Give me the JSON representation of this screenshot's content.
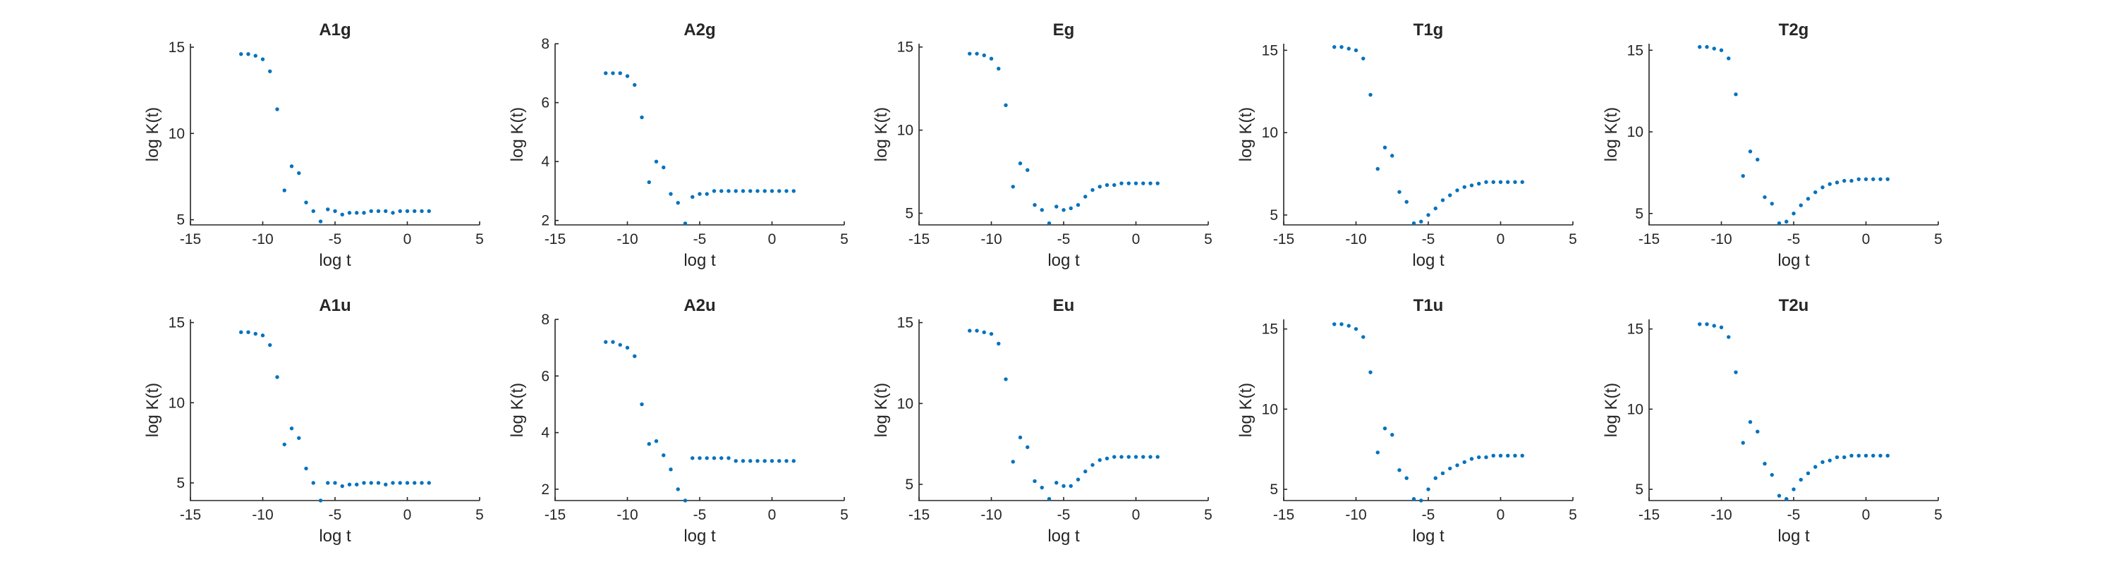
{
  "figure": {
    "background": "#ffffff",
    "marker_color": "#0072BD",
    "axis_color": "#262626"
  },
  "chart_data": [
    {
      "type": "scatter",
      "title": "A1g",
      "xlabel": "log t",
      "ylabel": "log K(t)",
      "xlim": [
        -15,
        5
      ],
      "ylim": [
        4.7,
        15.2
      ],
      "xticks": [
        -15,
        -10,
        -5,
        0,
        5
      ],
      "yticks": [
        5,
        10,
        15
      ],
      "grid": false,
      "x": [
        -11.5,
        -11.0,
        -10.5,
        -10.0,
        -9.5,
        -9.0,
        -8.5,
        -8.0,
        -7.5,
        -7.0,
        -6.5,
        -6.0,
        -5.5,
        -5.0,
        -4.5,
        -4.0,
        -3.5,
        -3.0,
        -2.5,
        -2.0,
        -1.5,
        -1.0,
        -0.5,
        0.0,
        0.5,
        1.0,
        1.5
      ],
      "y": [
        14.6,
        14.6,
        14.5,
        14.3,
        13.6,
        11.4,
        6.7,
        8.1,
        7.7,
        6.0,
        5.5,
        4.9,
        5.6,
        5.5,
        5.3,
        5.4,
        5.4,
        5.4,
        5.5,
        5.5,
        5.5,
        5.4,
        5.5,
        5.5,
        5.5,
        5.5,
        5.5
      ]
    },
    {
      "type": "scatter",
      "title": "A2g",
      "xlabel": "log t",
      "ylabel": "log K(t)",
      "xlim": [
        -15,
        5
      ],
      "ylim": [
        1.85,
        8.0
      ],
      "xticks": [
        -15,
        -10,
        -5,
        0,
        5
      ],
      "yticks": [
        2,
        4,
        6,
        8
      ],
      "grid": false,
      "x": [
        -11.5,
        -11.0,
        -10.5,
        -10.0,
        -9.5,
        -9.0,
        -8.5,
        -8.0,
        -7.5,
        -7.0,
        -6.5,
        -6.0,
        -5.5,
        -5.0,
        -4.5,
        -4.0,
        -3.5,
        -3.0,
        -2.5,
        -2.0,
        -1.5,
        -1.0,
        -0.5,
        0.0,
        0.5,
        1.0,
        1.5
      ],
      "y": [
        7.0,
        7.0,
        7.0,
        6.9,
        6.6,
        5.5,
        3.3,
        4.0,
        3.8,
        2.9,
        2.6,
        1.9,
        2.8,
        2.9,
        2.9,
        3.0,
        3.0,
        3.0,
        3.0,
        3.0,
        3.0,
        3.0,
        3.0,
        3.0,
        3.0,
        3.0,
        3.0
      ]
    },
    {
      "type": "scatter",
      "title": "Eg",
      "xlabel": "log t",
      "ylabel": "log K(t)",
      "xlim": [
        -15,
        5
      ],
      "ylim": [
        4.3,
        15.2
      ],
      "xticks": [
        -15,
        -10,
        -5,
        0,
        5
      ],
      "yticks": [
        5,
        10,
        15
      ],
      "grid": false,
      "x": [
        -11.5,
        -11.0,
        -10.5,
        -10.0,
        -9.5,
        -9.0,
        -8.5,
        -8.0,
        -7.5,
        -7.0,
        -6.5,
        -6.0,
        -5.5,
        -5.0,
        -4.5,
        -4.0,
        -3.5,
        -3.0,
        -2.5,
        -2.0,
        -1.5,
        -1.0,
        -0.5,
        0.0,
        0.5,
        1.0,
        1.5
      ],
      "y": [
        14.6,
        14.6,
        14.5,
        14.3,
        13.7,
        11.5,
        6.6,
        8.0,
        7.6,
        5.5,
        5.2,
        4.4,
        5.4,
        5.2,
        5.3,
        5.5,
        6.0,
        6.4,
        6.6,
        6.7,
        6.7,
        6.8,
        6.8,
        6.8,
        6.8,
        6.8,
        6.8
      ]
    },
    {
      "type": "scatter",
      "title": "T1g",
      "xlabel": "log t",
      "ylabel": "log K(t)",
      "xlim": [
        -15,
        5
      ],
      "ylim": [
        4.4,
        15.4
      ],
      "xticks": [
        -15,
        -10,
        -5,
        0,
        5
      ],
      "yticks": [
        5,
        10,
        15
      ],
      "grid": false,
      "x": [
        -11.5,
        -11.0,
        -10.5,
        -10.0,
        -9.5,
        -9.0,
        -8.5,
        -8.0,
        -7.5,
        -7.0,
        -6.5,
        -6.0,
        -5.5,
        -5.0,
        -4.5,
        -4.0,
        -3.5,
        -3.0,
        -2.5,
        -2.0,
        -1.5,
        -1.0,
        -0.5,
        0.0,
        0.5,
        1.0,
        1.5
      ],
      "y": [
        15.2,
        15.2,
        15.1,
        15.0,
        14.5,
        12.3,
        7.8,
        9.1,
        8.6,
        6.4,
        5.8,
        4.5,
        4.6,
        5.0,
        5.4,
        5.9,
        6.2,
        6.5,
        6.7,
        6.8,
        6.9,
        7.0,
        7.0,
        7.0,
        7.0,
        7.0,
        7.0
      ]
    },
    {
      "type": "scatter",
      "title": "T2g",
      "xlabel": "log t",
      "ylabel": "log K(t)",
      "xlim": [
        -15,
        5
      ],
      "ylim": [
        4.3,
        15.4
      ],
      "xticks": [
        -15,
        -10,
        -5,
        0,
        5
      ],
      "yticks": [
        5,
        10,
        15
      ],
      "grid": false,
      "x": [
        -11.5,
        -11.0,
        -10.5,
        -10.0,
        -9.5,
        -9.0,
        -8.5,
        -8.0,
        -7.5,
        -7.0,
        -6.5,
        -6.0,
        -5.5,
        -5.0,
        -4.5,
        -4.0,
        -3.5,
        -3.0,
        -2.5,
        -2.0,
        -1.5,
        -1.0,
        -0.5,
        0.0,
        0.5,
        1.0,
        1.5
      ],
      "y": [
        15.2,
        15.2,
        15.1,
        15.0,
        14.5,
        12.3,
        7.3,
        8.8,
        8.3,
        6.0,
        5.6,
        4.4,
        4.5,
        5.0,
        5.5,
        5.9,
        6.3,
        6.6,
        6.8,
        6.9,
        7.0,
        7.0,
        7.1,
        7.1,
        7.1,
        7.1,
        7.1
      ]
    },
    {
      "type": "scatter",
      "title": "A1u",
      "xlabel": "log t",
      "ylabel": "log K(t)",
      "xlim": [
        -15,
        5
      ],
      "ylim": [
        3.9,
        15.2
      ],
      "xticks": [
        -15,
        -10,
        -5,
        0,
        5
      ],
      "yticks": [
        5,
        10,
        15
      ],
      "grid": false,
      "x": [
        -11.5,
        -11.0,
        -10.5,
        -10.0,
        -9.5,
        -9.0,
        -8.5,
        -8.0,
        -7.5,
        -7.0,
        -6.5,
        -6.0,
        -5.5,
        -5.0,
        -4.5,
        -4.0,
        -3.5,
        -3.0,
        -2.5,
        -2.0,
        -1.5,
        -1.0,
        -0.5,
        0.0,
        0.5,
        1.0,
        1.5
      ],
      "y": [
        14.4,
        14.4,
        14.3,
        14.2,
        13.6,
        11.6,
        7.4,
        8.4,
        7.8,
        5.9,
        5.0,
        3.9,
        5.0,
        5.0,
        4.8,
        4.9,
        4.9,
        5.0,
        5.0,
        5.0,
        4.9,
        5.0,
        5.0,
        5.0,
        5.0,
        5.0,
        5.0
      ]
    },
    {
      "type": "scatter",
      "title": "A2u",
      "xlabel": "log t",
      "ylabel": "log K(t)",
      "xlim": [
        -15,
        5
      ],
      "ylim": [
        1.6,
        8.0
      ],
      "xticks": [
        -15,
        -10,
        -5,
        0,
        5
      ],
      "yticks": [
        2,
        4,
        6,
        8
      ],
      "grid": false,
      "x": [
        -11.5,
        -11.0,
        -10.5,
        -10.0,
        -9.5,
        -9.0,
        -8.5,
        -8.0,
        -7.5,
        -7.0,
        -6.5,
        -6.0,
        -5.5,
        -5.0,
        -4.5,
        -4.0,
        -3.5,
        -3.0,
        -2.5,
        -2.0,
        -1.5,
        -1.0,
        -0.5,
        0.0,
        0.5,
        1.0,
        1.5
      ],
      "y": [
        7.2,
        7.2,
        7.1,
        7.0,
        6.7,
        5.0,
        3.6,
        3.7,
        3.2,
        2.7,
        2.0,
        1.6,
        3.1,
        3.1,
        3.1,
        3.1,
        3.1,
        3.1,
        3.0,
        3.0,
        3.0,
        3.0,
        3.0,
        3.0,
        3.0,
        3.0,
        3.0
      ]
    },
    {
      "type": "scatter",
      "title": "Eu",
      "xlabel": "log t",
      "ylabel": "log K(t)",
      "xlim": [
        -15,
        5
      ],
      "ylim": [
        4.0,
        15.2
      ],
      "xticks": [
        -15,
        -10,
        -5,
        0,
        5
      ],
      "yticks": [
        5,
        10,
        15
      ],
      "grid": false,
      "x": [
        -11.5,
        -11.0,
        -10.5,
        -10.0,
        -9.5,
        -9.0,
        -8.5,
        -8.0,
        -7.5,
        -7.0,
        -6.5,
        -6.0,
        -5.5,
        -5.0,
        -4.5,
        -4.0,
        -3.5,
        -3.0,
        -2.5,
        -2.0,
        -1.5,
        -1.0,
        -0.5,
        0.0,
        0.5,
        1.0,
        1.5
      ],
      "y": [
        14.5,
        14.5,
        14.4,
        14.3,
        13.7,
        11.5,
        6.4,
        7.9,
        7.3,
        5.2,
        4.8,
        4.1,
        5.1,
        4.9,
        4.9,
        5.3,
        5.8,
        6.2,
        6.5,
        6.6,
        6.7,
        6.7,
        6.7,
        6.7,
        6.7,
        6.7,
        6.7
      ]
    },
    {
      "type": "scatter",
      "title": "T1u",
      "xlabel": "log t",
      "ylabel": "log K(t)",
      "xlim": [
        -15,
        5
      ],
      "ylim": [
        4.3,
        15.6
      ],
      "xticks": [
        -15,
        -10,
        -5,
        0,
        5
      ],
      "yticks": [
        5,
        10,
        15
      ],
      "grid": false,
      "x": [
        -11.5,
        -11.0,
        -10.5,
        -10.0,
        -9.5,
        -9.0,
        -8.5,
        -8.0,
        -7.5,
        -7.0,
        -6.5,
        -6.0,
        -5.5,
        -5.0,
        -4.5,
        -4.0,
        -3.5,
        -3.0,
        -2.5,
        -2.0,
        -1.5,
        -1.0,
        -0.5,
        0.0,
        0.5,
        1.0,
        1.5
      ],
      "y": [
        15.3,
        15.3,
        15.2,
        15.0,
        14.5,
        12.3,
        7.3,
        8.8,
        8.4,
        6.2,
        5.7,
        4.4,
        4.3,
        5.0,
        5.7,
        6.0,
        6.3,
        6.5,
        6.7,
        6.9,
        7.0,
        7.0,
        7.1,
        7.1,
        7.1,
        7.1,
        7.1
      ]
    },
    {
      "type": "scatter",
      "title": "T2u",
      "xlabel": "log t",
      "ylabel": "log K(t)",
      "xlim": [
        -15,
        5
      ],
      "ylim": [
        4.3,
        15.6
      ],
      "xticks": [
        -15,
        -10,
        -5,
        0,
        5
      ],
      "yticks": [
        5,
        10,
        15
      ],
      "grid": false,
      "x": [
        -11.5,
        -11.0,
        -10.5,
        -10.0,
        -9.5,
        -9.0,
        -8.5,
        -8.0,
        -7.5,
        -7.0,
        -6.5,
        -6.0,
        -5.5,
        -5.0,
        -4.5,
        -4.0,
        -3.5,
        -3.0,
        -2.5,
        -2.0,
        -1.5,
        -1.0,
        -0.5,
        0.0,
        0.5,
        1.0,
        1.5
      ],
      "y": [
        15.3,
        15.3,
        15.2,
        15.1,
        14.5,
        12.3,
        7.9,
        9.2,
        8.6,
        6.6,
        5.9,
        4.6,
        4.4,
        5.0,
        5.6,
        6.0,
        6.4,
        6.7,
        6.8,
        7.0,
        7.0,
        7.1,
        7.1,
        7.1,
        7.1,
        7.1,
        7.1
      ]
    }
  ]
}
